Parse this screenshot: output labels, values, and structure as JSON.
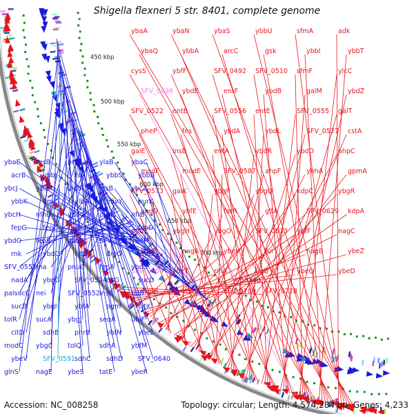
{
  "title": "Shigella flexneri 5 str. 8401, complete genome",
  "footer": {
    "accession": "Accession: NC_008258",
    "summary": "Topology: circular; Length: 4,574,284 bp; Genes: 4,233"
  },
  "colors": {
    "forward": "#e8141d",
    "reverse": "#1a1adc",
    "highlight": "#ee82ee",
    "cyan": "#1ea0d8",
    "backbone": "#888888",
    "gc_marks": "#1e8c1e"
  },
  "ticks": [
    "450 kbp",
    "500 kbp",
    "550 kbp",
    "600 kbp",
    "650 kbp",
    "700 kbp",
    "750 kbp"
  ],
  "genes_forward": [
    {
      "name": "ybaA"
    },
    {
      "name": "ybaN"
    },
    {
      "name": "ybaS"
    },
    {
      "name": "ybbU"
    },
    {
      "name": "sfmA"
    },
    {
      "name": "adk"
    },
    {
      "name": "ybaQ"
    },
    {
      "name": "ybbA"
    },
    {
      "name": "arcC"
    },
    {
      "name": "gsk"
    },
    {
      "name": "ybbI"
    },
    {
      "name": "ybbT"
    },
    {
      "name": "cysS"
    },
    {
      "name": "ybfF"
    },
    {
      "name": "SFV_0492"
    },
    {
      "name": "SFV_0510"
    },
    {
      "name": "sfmF"
    },
    {
      "name": "ylcC"
    },
    {
      "name": "SFV_0498",
      "highlight": true
    },
    {
      "name": "ybdE"
    },
    {
      "name": "entF"
    },
    {
      "name": "ybdB"
    },
    {
      "name": "galM"
    },
    {
      "name": "ybdZ"
    },
    {
      "name": "SFV_0522"
    },
    {
      "name": "entB"
    },
    {
      "name": "SFV_0556"
    },
    {
      "name": "entE"
    },
    {
      "name": "SFV_0555"
    },
    {
      "name": "galT"
    },
    {
      "name": "pheP"
    },
    {
      "name": "fes"
    },
    {
      "name": "ybdA"
    },
    {
      "name": "ybdL"
    },
    {
      "name": "SFV_0527"
    },
    {
      "name": "cstA"
    },
    {
      "name": "galE"
    },
    {
      "name": "insB"
    },
    {
      "name": "entA"
    },
    {
      "name": "ybdR"
    },
    {
      "name": "ybdD"
    },
    {
      "name": "ahpC"
    },
    {
      "name": "modF"
    },
    {
      "name": "modE"
    },
    {
      "name": "SFV_0587"
    },
    {
      "name": "ahpF"
    },
    {
      "name": "ybhA"
    },
    {
      "name": "gpmA"
    },
    {
      "name": "SFV_0573"
    },
    {
      "name": "galK"
    },
    {
      "name": "ybgP"
    },
    {
      "name": "ybgQ"
    },
    {
      "name": "kdpC"
    },
    {
      "name": "ybgR"
    },
    {
      "name": "ybgD"
    },
    {
      "name": "ybfE"
    },
    {
      "name": "farR"
    },
    {
      "name": "gltA"
    },
    {
      "name": "SFV_0629"
    },
    {
      "name": "kdpA"
    },
    {
      "name": "potE"
    },
    {
      "name": "ybgH"
    },
    {
      "name": "ybgO"
    },
    {
      "name": "SFV_0633"
    },
    {
      "name": "ybfF"
    },
    {
      "name": "nagC"
    },
    {
      "name": "kdpE"
    },
    {
      "name": "nagA"
    },
    {
      "name": "ybeY"
    },
    {
      "name": "fur"
    },
    {
      "name": "nagB"
    },
    {
      "name": "ybeZ"
    },
    {
      "name": "SFV_0664",
      "highlight": true
    },
    {
      "name": "ybeT"
    },
    {
      "name": "rihA"
    },
    {
      "name": "rlpB"
    },
    {
      "name": "ybeQ"
    },
    {
      "name": "ybeD"
    },
    {
      "name": "mrdB"
    },
    {
      "name": "crcB"
    },
    {
      "name": "SFV_0709"
    },
    {
      "name": "SFV_0728"
    }
  ],
  "genes_reverse": [
    {
      "name": "ybaE"
    },
    {
      "name": "tesB"
    },
    {
      "name": "priC"
    },
    {
      "name": "ylaB"
    },
    {
      "name": "ybaC"
    },
    {
      "name": "acrB"
    },
    {
      "name": "ybbJ"
    },
    {
      "name": "fsr"
    },
    {
      "name": "ybbS"
    },
    {
      "name": "ybbB"
    },
    {
      "name": "ybcJ"
    },
    {
      "name": "ybaK"
    },
    {
      "name": "insB"
    },
    {
      "name": "insB"
    },
    {
      "name": "ybcZ"
    },
    {
      "name": "ybbK"
    },
    {
      "name": "fimZ"
    },
    {
      "name": "ylbA"
    },
    {
      "name": "envY"
    },
    {
      "name": "purK"
    },
    {
      "name": "ybcH"
    },
    {
      "name": "nfnB"
    },
    {
      "name": "ybdG"
    },
    {
      "name": "purE"
    },
    {
      "name": "nfrB"
    },
    {
      "name": "fepG"
    },
    {
      "name": "fepC"
    },
    {
      "name": "ylcA"
    },
    {
      "name": "ybdK"
    },
    {
      "name": "fepD"
    },
    {
      "name": "ybdO"
    },
    {
      "name": "fepB"
    },
    {
      "name": "dsbG"
    },
    {
      "name": "SFV_0523"
    },
    {
      "name": "ybdM"
    },
    {
      "name": "rnk"
    },
    {
      "name": "ybdQ"
    },
    {
      "name": "citE"
    },
    {
      "name": "aroG"
    },
    {
      "name": "entD"
    },
    {
      "name": "SFV_0551"
    },
    {
      "name": "rna"
    },
    {
      "name": "pnuC"
    },
    {
      "name": "fepA"
    },
    {
      "name": "ybdS"
    },
    {
      "name": "nadA"
    },
    {
      "name": "ybgG"
    },
    {
      "name": "SFV_0524"
    },
    {
      "name": "citG"
    },
    {
      "name": "sucD"
    },
    {
      "name": "palsucC"
    },
    {
      "name": "nei"
    },
    {
      "name": "SFV_0552"
    },
    {
      "name": "insB"
    },
    {
      "name": "tolB"
    },
    {
      "name": "sucB"
    },
    {
      "name": "ybgI"
    },
    {
      "name": "ybfA"
    },
    {
      "name": "pgm"
    },
    {
      "name": "citX"
    },
    {
      "name": "tolR"
    },
    {
      "name": "sucA"
    },
    {
      "name": "ybgJ"
    },
    {
      "name": "seqA"
    },
    {
      "name": "ubiF"
    },
    {
      "name": "citD"
    },
    {
      "name": "sdhB"
    },
    {
      "name": "phrB"
    },
    {
      "name": "ybfN"
    },
    {
      "name": "ybeL"
    },
    {
      "name": "modC"
    },
    {
      "name": "ybgC"
    },
    {
      "name": "tolQ"
    },
    {
      "name": "sdhA"
    },
    {
      "name": "ybfM"
    },
    {
      "name": "ybeV"
    },
    {
      "name": "SFV_0591",
      "highlight": true
    },
    {
      "name": "sdhC"
    },
    {
      "name": "sdhD"
    },
    {
      "name": "SFV_0640"
    },
    {
      "name": "glnS"
    },
    {
      "name": "nagE"
    },
    {
      "name": "ybeS"
    },
    {
      "name": "tatE"
    },
    {
      "name": "ybeR"
    }
  ]
}
